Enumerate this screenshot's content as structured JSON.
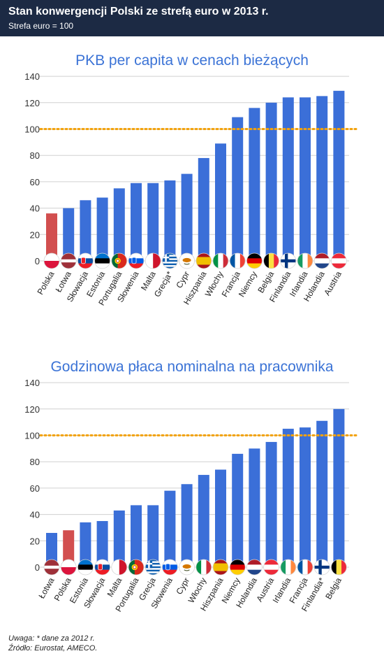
{
  "header": {
    "title": "Stan konwergencji Polski ze strefą euro w 2013 r.",
    "subtitle": "Strefa euro = 100"
  },
  "colors": {
    "header_bg": "#1c2a44",
    "bar": "#3b6fd8",
    "bar_highlight": "#d24f4f",
    "reference_line": "#f2a20c",
    "title": "#3b73d6"
  },
  "chart_data": [
    {
      "type": "bar",
      "title": "PKB per capita w cenach bieżących",
      "categories": [
        "Polska",
        "Łotwa",
        "Słowacja",
        "Estonia",
        "Portugalia",
        "Słowenia",
        "Malta",
        "Grecja*",
        "Cypr",
        "Hiszpania",
        "Włochy",
        "Francja",
        "Niemcy",
        "Belgia",
        "Finlandia",
        "Irlandia",
        "Holandia",
        "Austria"
      ],
      "values": [
        36,
        40,
        46,
        48,
        55,
        59,
        59,
        61,
        66,
        78,
        89,
        109,
        116,
        120,
        124,
        124,
        125,
        129
      ],
      "flags": [
        "poland",
        "latvia",
        "slovakia",
        "estonia",
        "portugal",
        "slovenia",
        "malta",
        "greece",
        "cyprus",
        "spain",
        "italy",
        "france",
        "germany",
        "belgium",
        "finland",
        "ireland",
        "netherlands",
        "austria"
      ],
      "highlight": "Polska",
      "reference_line": 100,
      "ylim": [
        0,
        140
      ],
      "yticks": [
        0,
        20,
        40,
        60,
        80,
        100,
        120,
        140
      ],
      "xlabel": "",
      "ylabel": ""
    },
    {
      "type": "bar",
      "title": "Godzinowa płaca nominalna na pracownika",
      "categories": [
        "Łotwa",
        "Polska",
        "Estonia",
        "Słowacja",
        "Malta",
        "Portugalia",
        "Grecja",
        "Słowenia",
        "Cypr",
        "Włochy",
        "Hiszpania",
        "Niemcy",
        "Holandia",
        "Austria",
        "Irlandia",
        "Francja",
        "Finlandia*",
        "Belgia"
      ],
      "values": [
        26,
        28,
        34,
        35,
        43,
        47,
        47,
        58,
        63,
        70,
        74,
        86,
        90,
        95,
        105,
        106,
        111,
        120
      ],
      "flags": [
        "latvia",
        "poland",
        "estonia",
        "slovakia",
        "malta",
        "portugal",
        "greece",
        "slovenia",
        "cyprus",
        "italy",
        "spain",
        "germany",
        "netherlands",
        "austria",
        "ireland",
        "france",
        "finland",
        "belgium"
      ],
      "highlight": "Polska",
      "reference_line": 100,
      "ylim": [
        0,
        140
      ],
      "yticks": [
        0,
        20,
        40,
        60,
        80,
        100,
        120,
        140
      ],
      "xlabel": "",
      "ylabel": ""
    }
  ],
  "footer": {
    "note": "Uwaga: * dane za 2012 r.",
    "source": "Źródło: Eurostat, AMECO."
  }
}
